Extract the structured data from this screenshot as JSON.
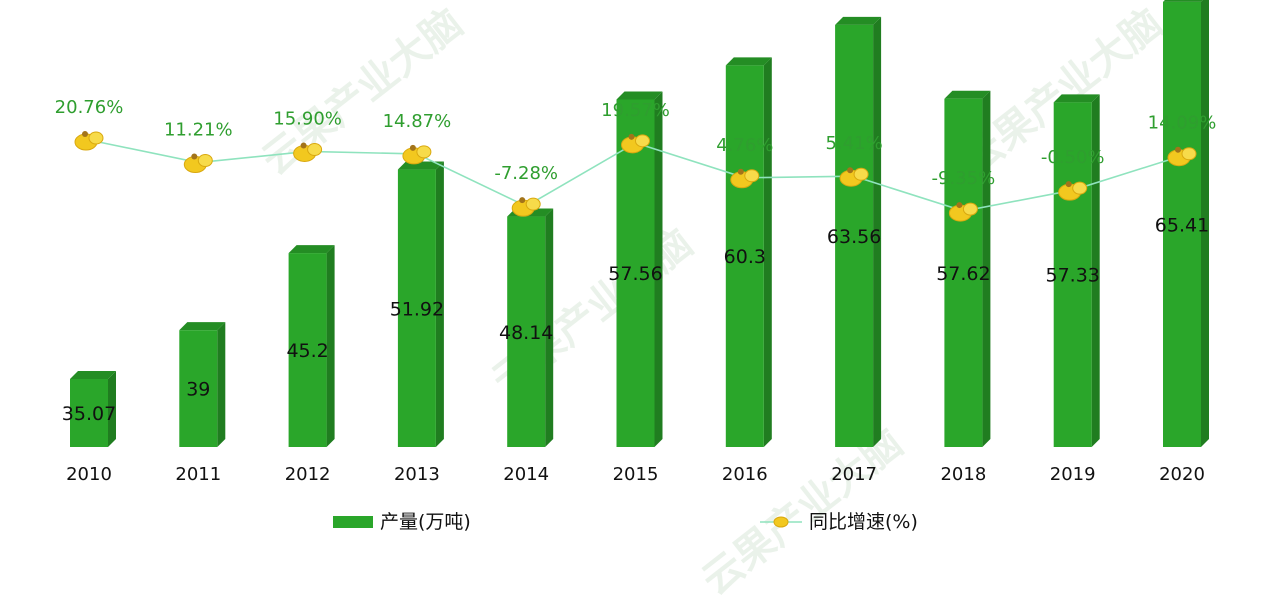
{
  "watermark": "云果产业大脑",
  "chart_data": {
    "type": "bar",
    "categories": [
      "2010",
      "2011",
      "2012",
      "2013",
      "2014",
      "2015",
      "2016",
      "2017",
      "2018",
      "2019",
      "2020"
    ],
    "series": [
      {
        "name": "产量(万吨)",
        "type": "bar",
        "values": [
          35.07,
          39,
          45.2,
          51.92,
          48.14,
          57.56,
          60.3,
          63.56,
          57.62,
          57.33,
          65.41
        ],
        "labels": [
          "35.07",
          "39",
          "45.2",
          "51.92",
          "48.14",
          "57.56",
          "60.3",
          "63.56",
          "57.62",
          "57.33",
          "65.41"
        ],
        "color": "#2aa62a"
      },
      {
        "name": "同比增速(%)",
        "type": "line",
        "values": [
          20.76,
          11.21,
          15.9,
          14.87,
          -7.28,
          19.57,
          4.76,
          5.41,
          -9.35,
          -0.5,
          14.09
        ],
        "labels": [
          "20.76%",
          "11.21%",
          "15.90%",
          "14.87%",
          "-7.28%",
          "19.57%",
          "4.76%",
          "5.41%",
          "-9.35%",
          "-0.50%",
          "14.09%"
        ],
        "color": "#8fe3be",
        "marker_color": "#f2c81f"
      }
    ],
    "label_color": "#2f9e2f",
    "legend_position": "bottom"
  }
}
